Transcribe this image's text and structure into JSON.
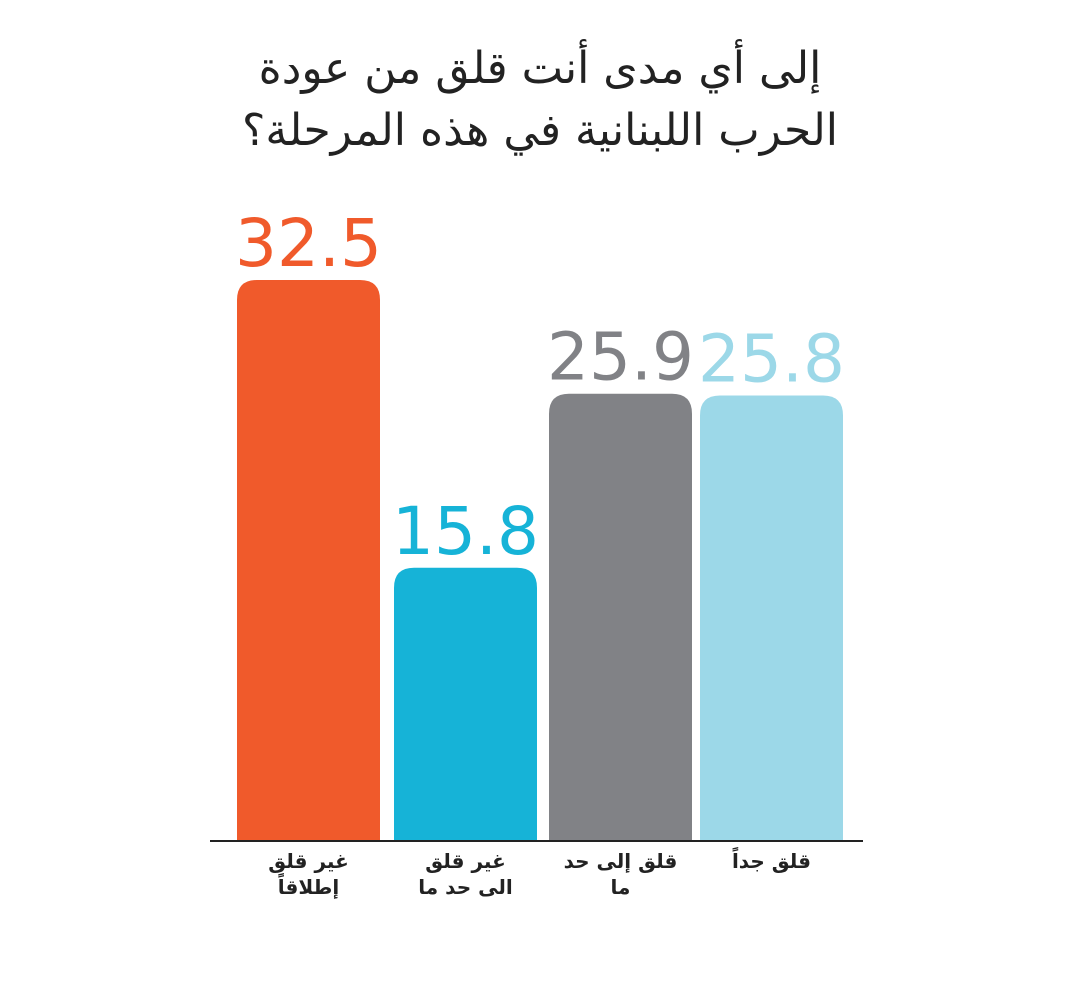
{
  "chart_data": {
    "type": "bar",
    "title": "إلى أي مدى أنت قلق من عودة الحرب اللبنانية في هذه المرحلة؟",
    "categories": [
      "غير قلق إطلاقاً",
      "غير قلق الى حد ما",
      "قلق إلى حد ما",
      "قلق جداً"
    ],
    "values": [
      32.5,
      15.8,
      25.9,
      25.8
    ],
    "colors": [
      "#f05a2b",
      "#16b3d7",
      "#818286",
      "#9cd8e8"
    ]
  }
}
